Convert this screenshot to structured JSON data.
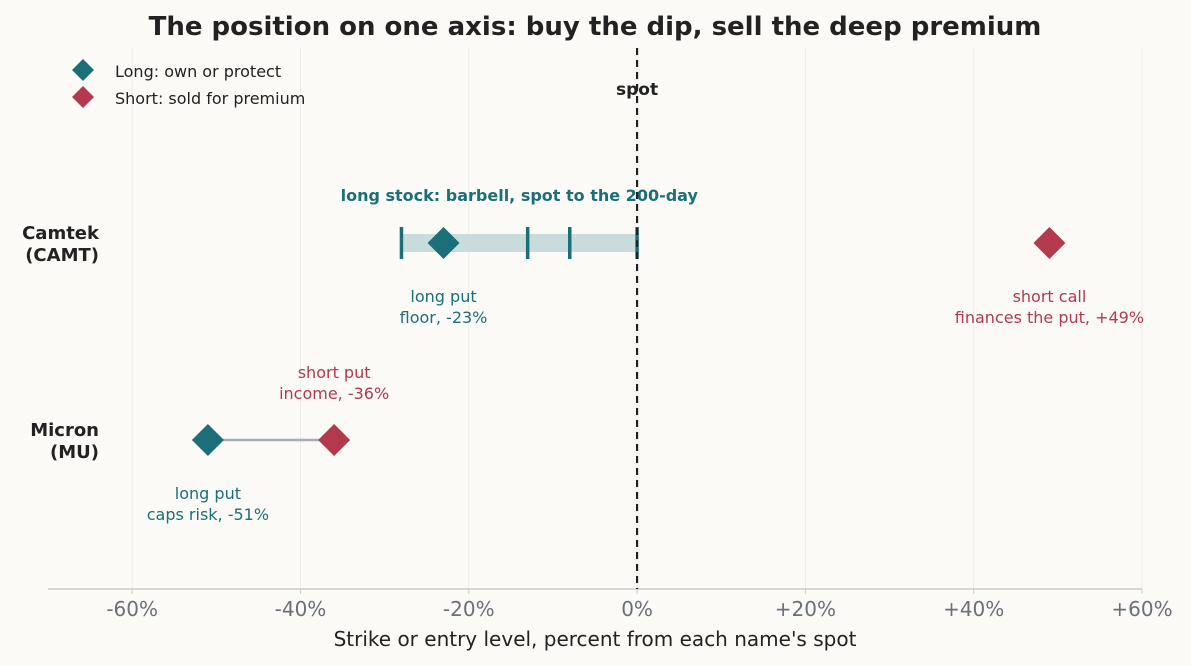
{
  "chart_data": {
    "type": "scatter",
    "title": "The position on one axis: buy the dip, sell the deep premium",
    "xlabel": "Strike or entry level, percent from each name's spot",
    "xlim": [
      -70,
      60
    ],
    "x_ticks": [
      -60,
      -40,
      -20,
      0,
      20,
      40,
      60
    ],
    "x_tick_labels": [
      "-60%",
      "-40%",
      "-20%",
      "0%",
      "+20%",
      "+40%",
      "+60%"
    ],
    "grid": "vertical",
    "legend_placement": "top-left",
    "legend": [
      {
        "label": "Long: own or protect",
        "color": "#1b6f78"
      },
      {
        "label": "Short: sold for premium",
        "color": "#b33a4c"
      }
    ],
    "spot_label": "spot",
    "rows": [
      {
        "label_line1": "Camtek",
        "label_line2": "(CAMT)",
        "band": {
          "from": -28,
          "to": 0,
          "entry_ticks": [
            -28,
            -13,
            -8,
            0
          ],
          "label": "long stock: barbell, spot to the 200-day"
        },
        "connector": false,
        "points": [
          {
            "x": -23,
            "side": "long",
            "label_line1": "long put",
            "label_line2": "floor, -23%",
            "label_pos": "below"
          },
          {
            "x": 49,
            "side": "short",
            "label_line1": "short call",
            "label_line2": "finances the put, +49%",
            "label_pos": "below"
          }
        ]
      },
      {
        "label_line1": "Micron",
        "label_line2": "(MU)",
        "band": null,
        "connector": true,
        "points": [
          {
            "x": -51,
            "side": "long",
            "label_line1": "long put",
            "label_line2": "caps risk, -51%",
            "label_pos": "below"
          },
          {
            "x": -36,
            "side": "short",
            "label_line1": "short put",
            "label_line2": "income, -36%",
            "label_pos": "above"
          }
        ]
      }
    ],
    "colors": {
      "long": "#1b6f78",
      "short": "#b33a4c",
      "band": "#c9dcdc",
      "connector": "#a7acb4",
      "grid": "#ececea",
      "axis": "#cccccc",
      "spot_line": "#222222"
    }
  }
}
